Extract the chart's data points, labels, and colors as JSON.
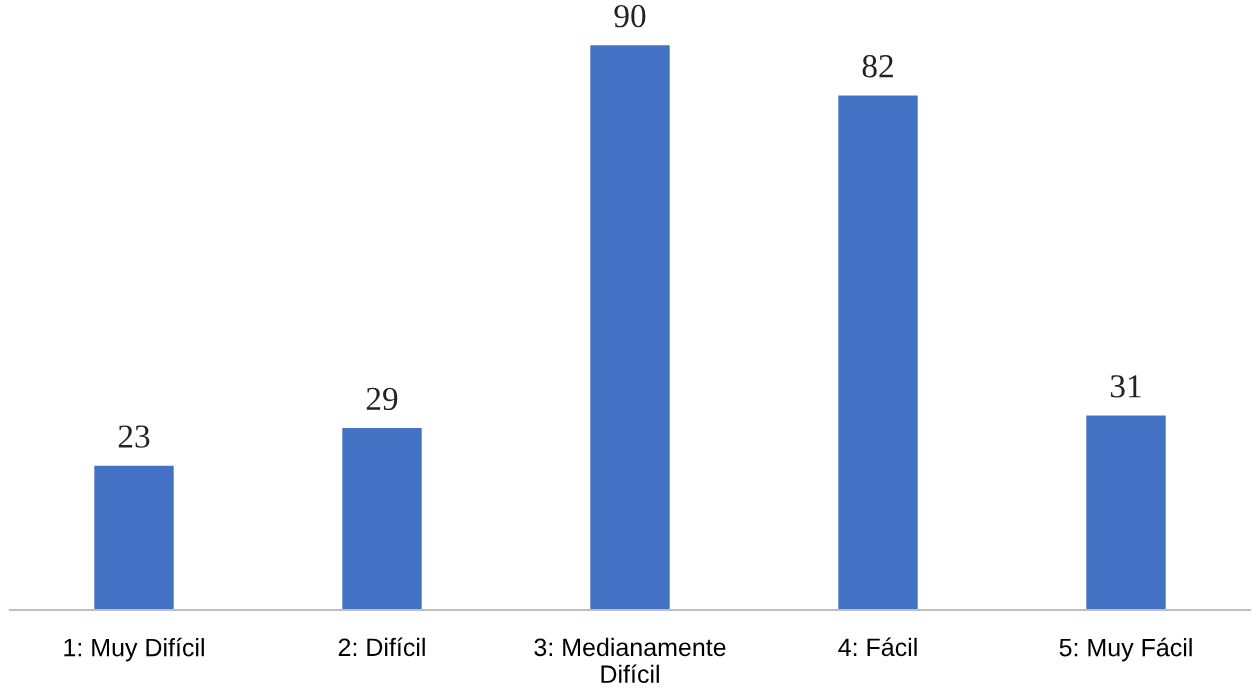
{
  "chart_data": {
    "type": "bar",
    "categories": [
      "1: Muy Difícil",
      "2: Difícil",
      "3: Medianamente\nDifícil",
      "4: Fácil",
      "5: Muy Fácil"
    ],
    "values": [
      23,
      29,
      90,
      82,
      31
    ],
    "color": "#4472c4",
    "data_labels": true,
    "grid": false,
    "legend": false
  }
}
